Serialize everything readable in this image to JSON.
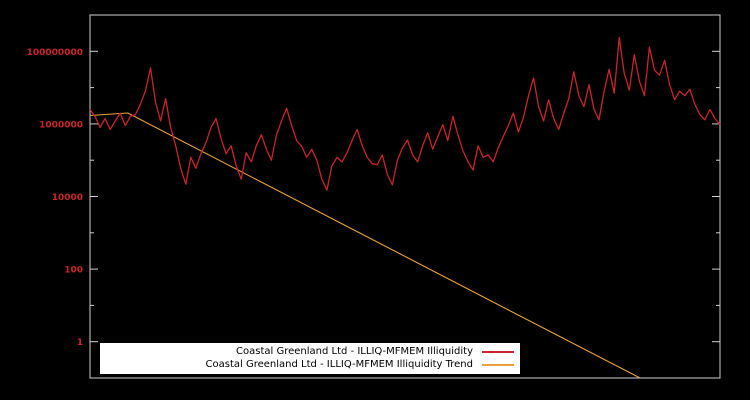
{
  "window": {
    "background": "#000000"
  },
  "legend": {
    "items": [
      {
        "label": "Coastal Greenland Ltd - ILLIQ-MFMEM Illiquidity",
        "color": "#c9252d"
      },
      {
        "label": "Coastal Greenland Ltd - ILLIQ-MFMEM Illiquidity Trend",
        "color": "#e8a33c"
      }
    ]
  },
  "chart_data": {
    "type": "line",
    "title": "",
    "xlabel": "",
    "ylabel": "",
    "y_scale": "log",
    "ylim": [
      0.1,
      1000000000
    ],
    "grid": false,
    "legend_position": "bottom-center",
    "axis_color": "#d0d0d0",
    "tick_label_color": "#c9252d",
    "yticks": [
      {
        "value": 100000000,
        "label": "100000000"
      },
      {
        "value": 1000000,
        "label": "1000000"
      },
      {
        "value": 10000,
        "label": "10000"
      },
      {
        "value": 100,
        "label": "100"
      },
      {
        "value": 1,
        "label": "1"
      }
    ],
    "minor_tick_values": [
      10000000,
      100000,
      1000,
      10
    ],
    "series": [
      {
        "key": "illiquidity",
        "name": "Coastal Greenland Ltd - ILLIQ-MFMEM Illiquidity",
        "color": "#c9252d",
        "values": [
          2500000.0,
          1600000.0,
          800000.0,
          1400000.0,
          700000.0,
          1200000.0,
          2000000.0,
          900000.0,
          1600000.0,
          1800000.0,
          3500000.0,
          8000000.0,
          35000000.0,
          4000000.0,
          1200000.0,
          5000000.0,
          800000.0,
          250000.0,
          60000.0,
          22000.0,
          120000.0,
          60000.0,
          150000.0,
          300000.0,
          800000.0,
          1400000.0,
          400000.0,
          150000.0,
          250000.0,
          70000.0,
          30000.0,
          160000.0,
          90000.0,
          250000.0,
          500000.0,
          200000.0,
          100000.0,
          500000.0,
          1200000.0,
          2700000.0,
          900000.0,
          350000.0,
          240000.0,
          120000.0,
          200000.0,
          100000.0,
          30000.0,
          15000.0,
          70000.0,
          120000.0,
          90000.0,
          160000.0,
          350000.0,
          700000.0,
          250000.0,
          120000.0,
          80000.0,
          75000.0,
          140000.0,
          40000.0,
          21000.0,
          100000.0,
          220000.0,
          360000.0,
          140000.0,
          90000.0,
          250000.0,
          570000.0,
          200000.0,
          450000.0,
          950000.0,
          350000.0,
          1600000.0,
          500000.0,
          180000.0,
          90000.0,
          54000.0,
          250000.0,
          120000.0,
          140000.0,
          90000.0,
          220000.0,
          450000.0,
          900000.0,
          2000000.0,
          600000.0,
          1500000.0,
          6000000.0,
          18500000.0,
          3000000.0,
          1200000.0,
          4600000.0,
          1400000.0,
          700000.0,
          2000000.0,
          5000000.0,
          27000000.0,
          6000000.0,
          3000000.0,
          12000000.0,
          2500000.0,
          1300000.0,
          8000000.0,
          32000000.0,
          7000000.0,
          240000000.0,
          25000000.0,
          8500000.0,
          80000000.0,
          15000000.0,
          6000000.0,
          130000000.0,
          30000000.0,
          22000000.0,
          56000000.0,
          12000000.0,
          4600000.0,
          8000000.0,
          6000000.0,
          9000000.0,
          3500000.0,
          1800000.0,
          1300000.0,
          2500000.0,
          1400000.0,
          950000.0
        ]
      },
      {
        "key": "trend",
        "name": "Coastal Greenland Ltd - ILLIQ-MFMEM Illiquidity Trend",
        "color": "#e8a33c",
        "points": [
          [
            0.0,
            1700000.0
          ],
          [
            0.06,
            2000000.0
          ],
          [
            0.873,
            0.1
          ]
        ]
      }
    ]
  }
}
